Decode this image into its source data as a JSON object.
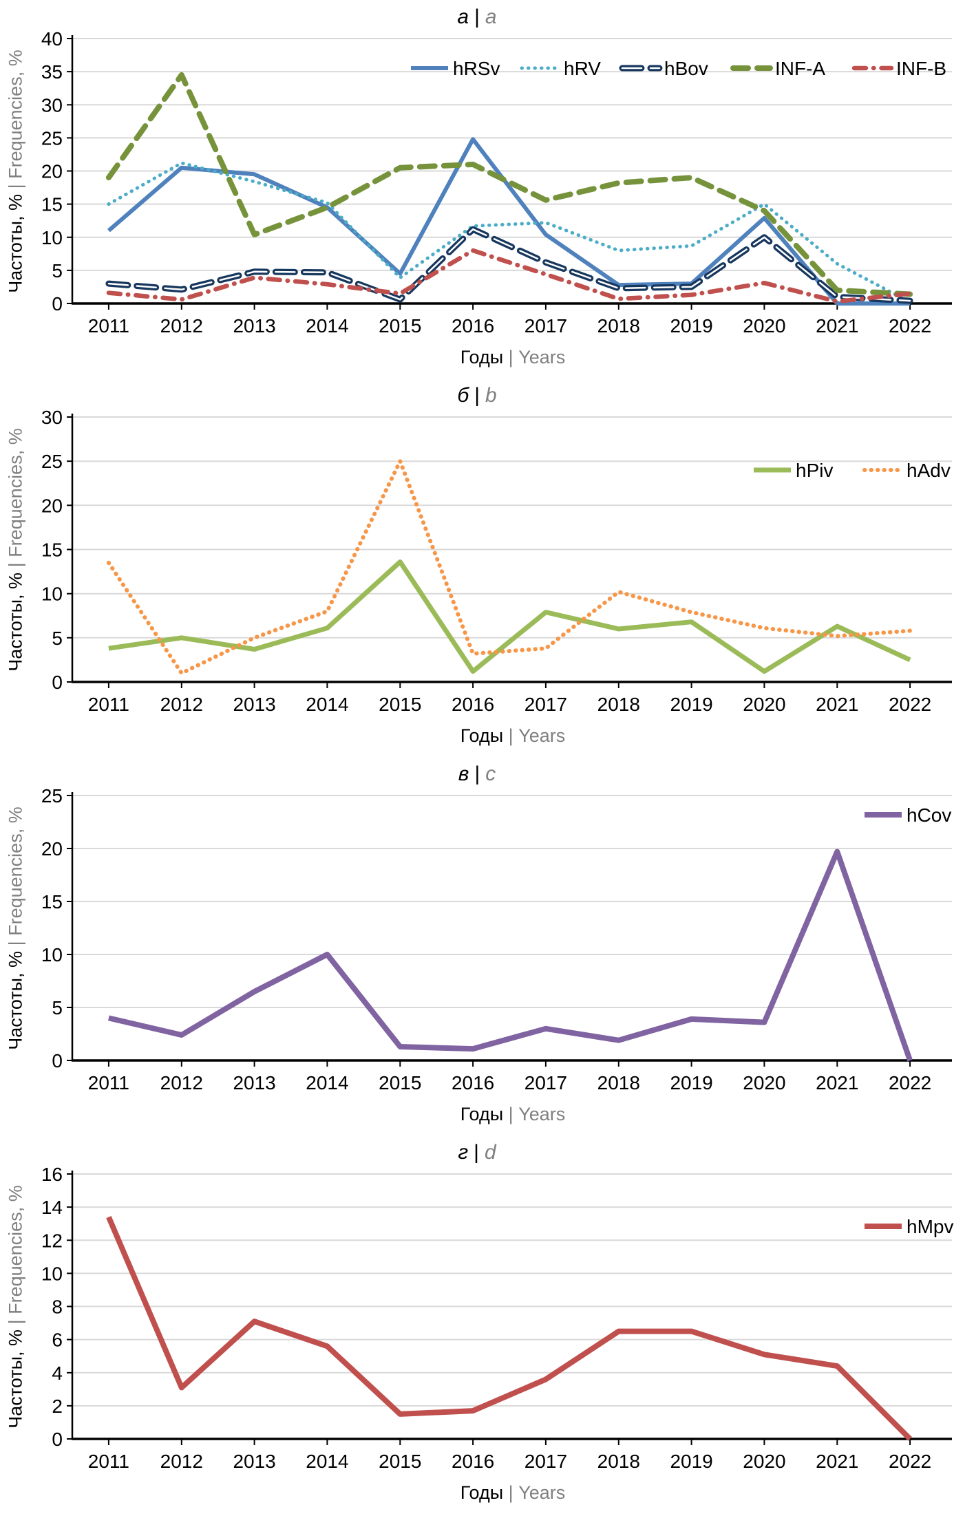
{
  "axis": {
    "x_title_ru": "Годы",
    "y_title_ru": "Частоты, %",
    "sep": "|",
    "x_title_en": "Years",
    "y_title_en": "Frequencies, %"
  },
  "colors": {
    "grid": "#D9D9D9",
    "axis_line": "#000000",
    "secondary_text": "#808080"
  },
  "chart_data": [
    {
      "id": "a",
      "type": "line",
      "title_ru": "а",
      "title_en": "a",
      "categories": [
        "2011",
        "2012",
        "2013",
        "2014",
        "2015",
        "2016",
        "2017",
        "2018",
        "2019",
        "2020",
        "2021",
        "2022"
      ],
      "ylim": [
        0,
        40
      ],
      "ytick_step": 5,
      "grid": true,
      "legend_position": "top-right-inside",
      "series": [
        {
          "name": "hRSv",
          "color": "#4F81BD",
          "style": "solid",
          "width": 6,
          "values": [
            11,
            20.5,
            19.5,
            14.5,
            4.5,
            24.8,
            10.4,
            2.8,
            3,
            12.9,
            0,
            0
          ]
        },
        {
          "name": "hRV",
          "color": "#4BACC6",
          "style": "dotted",
          "width": 5,
          "values": [
            15,
            21.2,
            18.4,
            15.2,
            3.9,
            11.7,
            12.2,
            8,
            8.7,
            15,
            6,
            0.2
          ]
        },
        {
          "name": "hBov",
          "color": "#17375E",
          "style": "double",
          "width": 9,
          "values": [
            3,
            2.1,
            4.8,
            4.7,
            0.6,
            11.2,
            6.2,
            2.3,
            2.5,
            10,
            1,
            0.4
          ]
        },
        {
          "name": "INF-A",
          "color": "#76933C",
          "style": "dashed",
          "width": 8,
          "values": [
            19,
            34.5,
            10.4,
            14.5,
            20.5,
            21,
            15.6,
            18.2,
            19,
            14,
            2,
            1.4
          ]
        },
        {
          "name": "INF-B",
          "color": "#C0504D",
          "style": "dashdot",
          "width": 6.5,
          "values": [
            1.6,
            0.6,
            3.9,
            2.9,
            1.5,
            8,
            4.4,
            0.7,
            1.3,
            3.1,
            0.3,
            1.5
          ]
        }
      ]
    },
    {
      "id": "b",
      "type": "line",
      "title_ru": "б",
      "title_en": "b",
      "categories": [
        "2011",
        "2012",
        "2013",
        "2014",
        "2015",
        "2016",
        "2017",
        "2018",
        "2019",
        "2020",
        "2021",
        "2022"
      ],
      "ylim": [
        0,
        30
      ],
      "ytick_step": 5,
      "grid": true,
      "legend_position": "top-right-inside",
      "series": [
        {
          "name": "hPiv",
          "color": "#9BBB59",
          "style": "solid",
          "width": 7,
          "values": [
            3.8,
            5,
            3.7,
            6.1,
            13.6,
            1.2,
            7.9,
            6,
            6.8,
            1.2,
            6.3,
            2.5
          ]
        },
        {
          "name": "hAdv",
          "color": "#F79646",
          "style": "dotted",
          "width": 6,
          "values": [
            13.5,
            1,
            5,
            8,
            25,
            3.2,
            3.8,
            10.2,
            7.9,
            6.1,
            5.2,
            5.8
          ]
        }
      ]
    },
    {
      "id": "c",
      "type": "line",
      "title_ru": "в",
      "title_en": "c",
      "categories": [
        "2011",
        "2012",
        "2013",
        "2014",
        "2015",
        "2016",
        "2017",
        "2018",
        "2019",
        "2020",
        "2021",
        "2022"
      ],
      "ylim": [
        0,
        25
      ],
      "ytick_step": 5,
      "grid": true,
      "legend_position": "top-right-inside",
      "series": [
        {
          "name": "hCov",
          "color": "#8064A2",
          "style": "solid",
          "width": 8,
          "values": [
            4,
            2.4,
            6.5,
            10,
            1.3,
            1.1,
            3,
            1.9,
            3.9,
            3.6,
            19.7,
            0
          ]
        }
      ]
    },
    {
      "id": "d",
      "type": "line",
      "title_ru": "г",
      "title_en": "d",
      "categories": [
        "2011",
        "2012",
        "2013",
        "2014",
        "2015",
        "2016",
        "2017",
        "2018",
        "2019",
        "2020",
        "2021",
        "2022"
      ],
      "ylim": [
        0,
        16
      ],
      "ytick_step": 2,
      "grid": true,
      "legend_position": "top-right-inside",
      "series": [
        {
          "name": "hMpv",
          "color": "#C0504D",
          "style": "solid",
          "width": 8,
          "values": [
            13.4,
            3.1,
            7.1,
            5.6,
            1.5,
            1.7,
            3.6,
            6.5,
            6.5,
            5.1,
            4.4,
            0
          ]
        }
      ]
    }
  ]
}
